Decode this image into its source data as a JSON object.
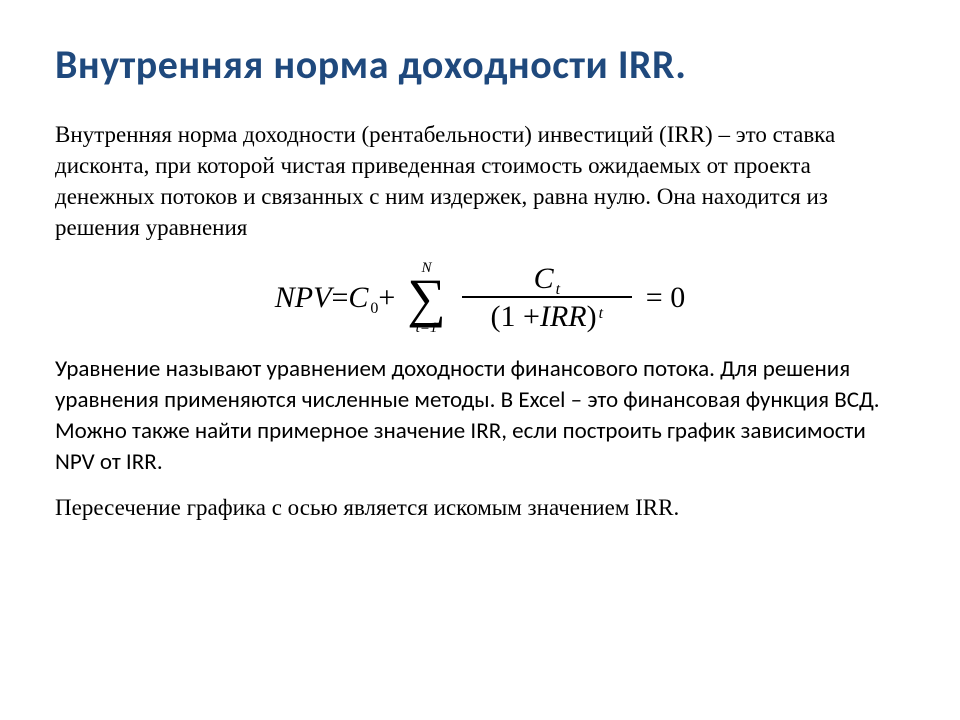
{
  "title": "Внутренняя норма  доходности  IRR.",
  "para1": "Внутренняя норма доходности (рентабельности) инвестиций (IRR) – это ставка дисконта, при которой чистая приведенная стоимость ожидаемых от проекта денежных потоков и связанных с ним издержек, равна нулю. Она находится из решения уравнения",
  "formula": {
    "npv": "NPV",
    "eq1": " = ",
    "c0": "C",
    "c0_sub": "0",
    "plus1": " + ",
    "sigma_top": "N",
    "sigma_bot": "t=1",
    "ct": "C",
    "ct_sub": "t",
    "denom_open": "(1 + ",
    "irr": "IRR",
    "denom_close": ")",
    "denom_sup": "t",
    "eq2": " = 0"
  },
  "para2": "Уравнение называют уравнением доходности финансового потока. Для решения уравнения применяются численные методы. В Excel – это финансовая функция ВСД. Можно также найти примерное значение IRR, если построить график зависимости NPV от IRR.",
  "para3": "Пересечение графика с осью  является искомым значением IRR.",
  "colors": {
    "title": "#1f497d",
    "body": "#000000",
    "background": "#ffffff"
  },
  "fonts": {
    "title_size": 40,
    "body_size": 23,
    "formula_size": 30
  }
}
